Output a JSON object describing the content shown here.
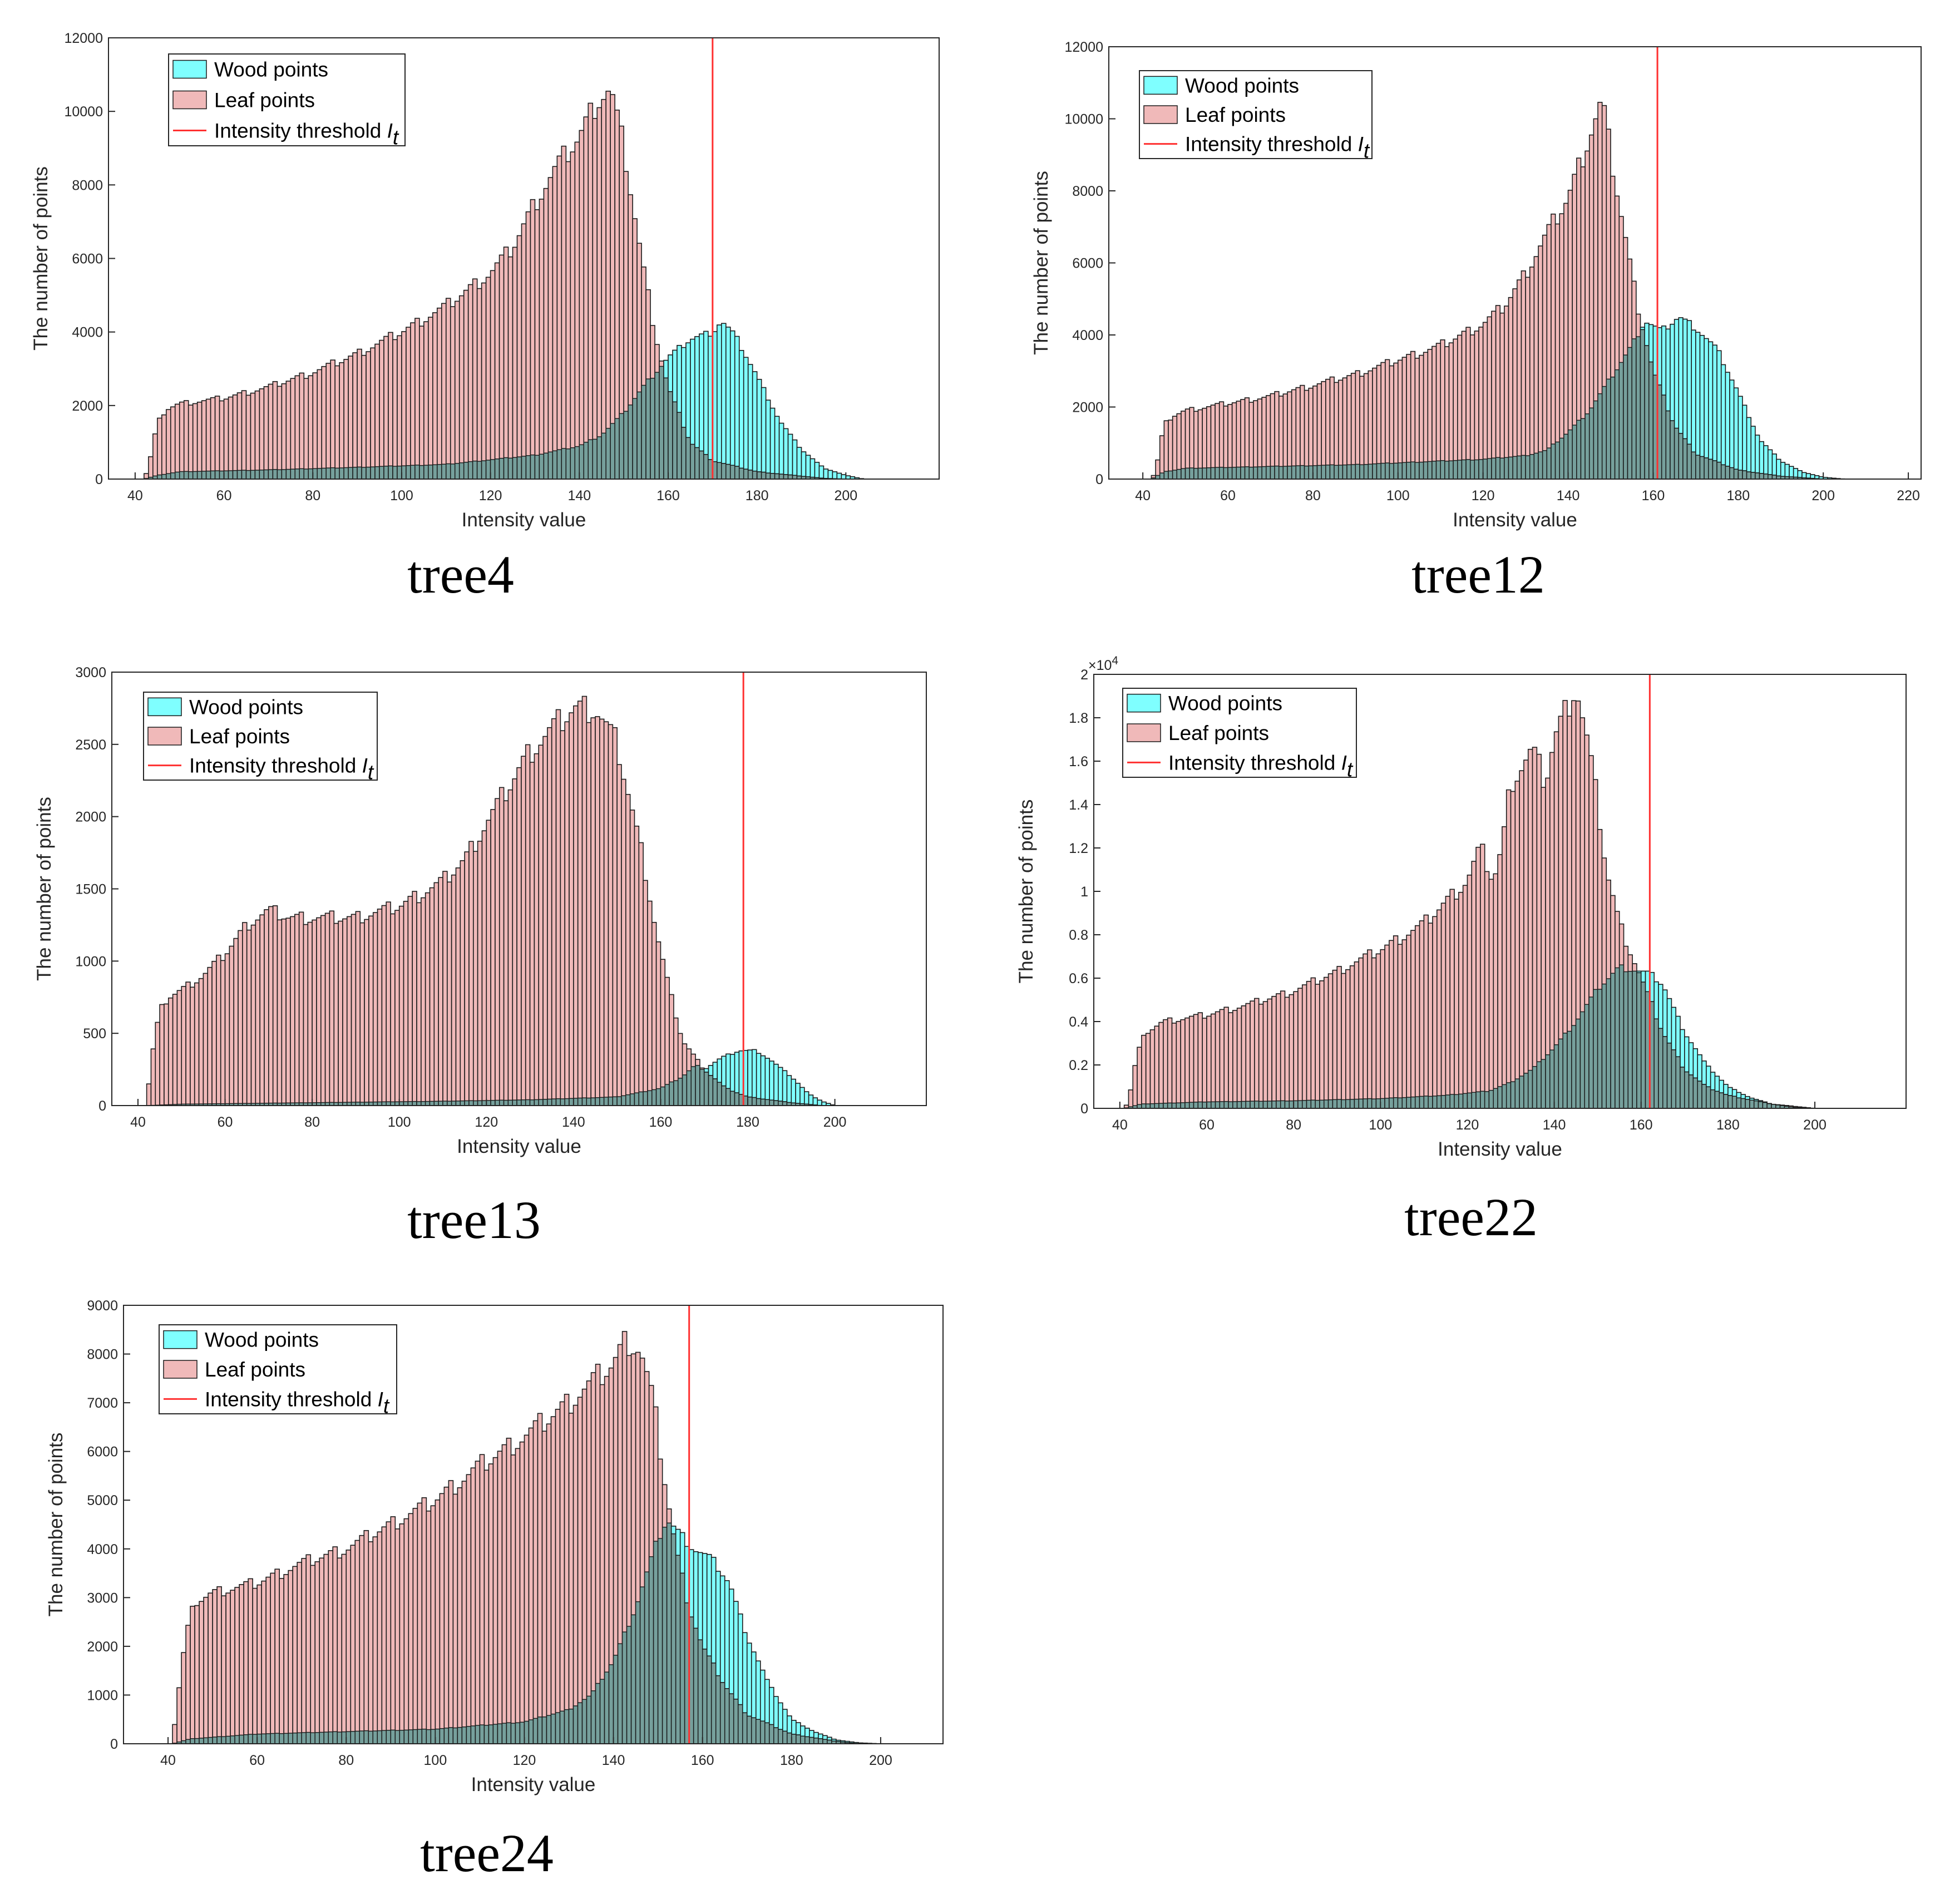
{
  "figure": {
    "caption_note": ""
  },
  "colors": {
    "wood": "#7fffff",
    "leaf": "#f0b9b9",
    "overlap": "#6f9e9a",
    "threshold": "#ff3030",
    "edge": "#1a1a1a",
    "axis": "#262626"
  },
  "legend": {
    "wood": "Wood points",
    "leaf": "Leaf points",
    "threshold": "Intensity threshold",
    "threshold_symbol": "I",
    "threshold_sub": "t"
  },
  "chart_data": [
    {
      "id": "tree4",
      "type": "bar",
      "caption": "tree4",
      "xlabel": "Intensity value",
      "ylabel": "The number of points",
      "xlim": [
        34,
        221
      ],
      "ylim": [
        0,
        12000
      ],
      "xticks": [
        40,
        60,
        80,
        100,
        120,
        140,
        160,
        180,
        200
      ],
      "xtick_labels": [
        "40",
        "60",
        "80",
        "100",
        "120",
        "140",
        "160",
        "180",
        "200"
      ],
      "yticks": [
        0,
        2000,
        4000,
        6000,
        8000,
        10000,
        12000
      ],
      "ytick_labels": [
        "0",
        "2000",
        "4000",
        "6000",
        "8000",
        "10000",
        "12000"
      ],
      "exponent_label": "",
      "threshold": 170,
      "bin_width": 1,
      "leaf_anchors": [
        [
          42,
          0
        ],
        [
          43,
          300
        ],
        [
          45,
          1500
        ],
        [
          47,
          1900
        ],
        [
          50,
          2050
        ],
        [
          60,
          2200
        ],
        [
          70,
          2500
        ],
        [
          80,
          2900
        ],
        [
          90,
          3400
        ],
        [
          100,
          4000
        ],
        [
          110,
          4700
        ],
        [
          120,
          5600
        ],
        [
          125,
          6300
        ],
        [
          130,
          7500
        ],
        [
          135,
          8500
        ],
        [
          140,
          9300
        ],
        [
          144,
          10300
        ],
        [
          147,
          10600
        ],
        [
          150,
          9000
        ],
        [
          152,
          7500
        ],
        [
          154,
          6000
        ],
        [
          157,
          4000
        ],
        [
          160,
          2500
        ],
        [
          165,
          1000
        ],
        [
          170,
          500
        ],
        [
          180,
          200
        ],
        [
          195,
          20
        ],
        [
          200,
          0
        ]
      ],
      "wood_anchors": [
        [
          42,
          0
        ],
        [
          45,
          100
        ],
        [
          50,
          200
        ],
        [
          70,
          250
        ],
        [
          90,
          320
        ],
        [
          110,
          400
        ],
        [
          130,
          650
        ],
        [
          140,
          900
        ],
        [
          145,
          1200
        ],
        [
          150,
          1800
        ],
        [
          155,
          2600
        ],
        [
          160,
          3300
        ],
        [
          165,
          3800
        ],
        [
          170,
          4000
        ],
        [
          172,
          4300
        ],
        [
          175,
          3900
        ],
        [
          180,
          2800
        ],
        [
          185,
          1600
        ],
        [
          190,
          800
        ],
        [
          195,
          300
        ],
        [
          200,
          100
        ],
        [
          204,
          0
        ]
      ]
    },
    {
      "id": "tree12",
      "type": "bar",
      "caption": "tree12",
      "xlabel": "Intensity value",
      "ylabel": "The number of points",
      "xlim": [
        32,
        223
      ],
      "ylim": [
        0,
        12000
      ],
      "xticks": [
        40,
        60,
        80,
        100,
        120,
        140,
        160,
        180,
        200,
        220
      ],
      "xtick_labels": [
        "40",
        "60",
        "80",
        "100",
        "120",
        "140",
        "160",
        "180",
        "200",
        "220"
      ],
      "yticks": [
        0,
        2000,
        4000,
        6000,
        8000,
        10000,
        12000
      ],
      "ytick_labels": [
        "0",
        "2000",
        "4000",
        "6000",
        "8000",
        "10000",
        "12000"
      ],
      "exponent_label": "",
      "threshold": 161,
      "bin_width": 1,
      "leaf_anchors": [
        [
          42,
          0
        ],
        [
          43,
          200
        ],
        [
          45,
          1500
        ],
        [
          47,
          1750
        ],
        [
          50,
          1900
        ],
        [
          60,
          2100
        ],
        [
          70,
          2300
        ],
        [
          80,
          2600
        ],
        [
          90,
          2900
        ],
        [
          100,
          3300
        ],
        [
          110,
          3700
        ],
        [
          120,
          4300
        ],
        [
          125,
          4800
        ],
        [
          130,
          5700
        ],
        [
          135,
          6800
        ],
        [
          140,
          7800
        ],
        [
          145,
          9500
        ],
        [
          148,
          10500
        ],
        [
          150,
          9000
        ],
        [
          153,
          7000
        ],
        [
          156,
          5000
        ],
        [
          160,
          3000
        ],
        [
          165,
          1500
        ],
        [
          170,
          700
        ],
        [
          180,
          250
        ],
        [
          190,
          80
        ],
        [
          200,
          0
        ]
      ],
      "wood_anchors": [
        [
          42,
          0
        ],
        [
          45,
          200
        ],
        [
          50,
          300
        ],
        [
          70,
          350
        ],
        [
          90,
          400
        ],
        [
          110,
          500
        ],
        [
          120,
          550
        ],
        [
          130,
          650
        ],
        [
          135,
          800
        ],
        [
          140,
          1300
        ],
        [
          145,
          1900
        ],
        [
          150,
          2800
        ],
        [
          155,
          3700
        ],
        [
          158,
          4400
        ],
        [
          162,
          4100
        ],
        [
          166,
          4500
        ],
        [
          170,
          4200
        ],
        [
          175,
          3600
        ],
        [
          180,
          2400
        ],
        [
          185,
          1100
        ],
        [
          190,
          500
        ],
        [
          195,
          200
        ],
        [
          200,
          50
        ],
        [
          205,
          0
        ]
      ]
    },
    {
      "id": "tree13",
      "type": "bar",
      "caption": "tree13",
      "xlabel": "Intensity value",
      "ylabel": "The number of points",
      "xlim": [
        34,
        221
      ],
      "ylim": [
        0,
        3000
      ],
      "xticks": [
        40,
        60,
        80,
        100,
        120,
        140,
        160,
        180,
        200
      ],
      "xtick_labels": [
        "40",
        "60",
        "80",
        "100",
        "120",
        "140",
        "160",
        "180",
        "200"
      ],
      "yticks": [
        0,
        500,
        1000,
        1500,
        2000,
        2500,
        3000
      ],
      "ytick_labels": [
        "0",
        "500",
        "1000",
        "1500",
        "2000",
        "2500",
        "3000"
      ],
      "exponent_label": "",
      "threshold": 179,
      "bin_width": 1,
      "leaf_anchors": [
        [
          42,
          0
        ],
        [
          43,
          300
        ],
        [
          45,
          650
        ],
        [
          47,
          750
        ],
        [
          50,
          800
        ],
        [
          55,
          900
        ],
        [
          60,
          1050
        ],
        [
          65,
          1250
        ],
        [
          70,
          1350
        ],
        [
          75,
          1300
        ],
        [
          80,
          1300
        ],
        [
          90,
          1300
        ],
        [
          100,
          1380
        ],
        [
          110,
          1550
        ],
        [
          115,
          1700
        ],
        [
          120,
          1950
        ],
        [
          125,
          2200
        ],
        [
          130,
          2450
        ],
        [
          135,
          2600
        ],
        [
          140,
          2750
        ],
        [
          145,
          2750
        ],
        [
          150,
          2500
        ],
        [
          153,
          2100
        ],
        [
          156,
          1700
        ],
        [
          159,
          1200
        ],
        [
          162,
          800
        ],
        [
          165,
          450
        ],
        [
          170,
          250
        ],
        [
          175,
          120
        ],
        [
          180,
          60
        ],
        [
          190,
          20
        ],
        [
          197,
          0
        ]
      ],
      "wood_anchors": [
        [
          42,
          0
        ],
        [
          50,
          10
        ],
        [
          80,
          20
        ],
        [
          110,
          30
        ],
        [
          130,
          40
        ],
        [
          150,
          60
        ],
        [
          160,
          120
        ],
        [
          165,
          200
        ],
        [
          168,
          280
        ],
        [
          170,
          250
        ],
        [
          174,
          330
        ],
        [
          178,
          380
        ],
        [
          182,
          380
        ],
        [
          185,
          320
        ],
        [
          190,
          200
        ],
        [
          194,
          80
        ],
        [
          197,
          30
        ],
        [
          200,
          0
        ]
      ]
    },
    {
      "id": "tree22",
      "type": "bar",
      "caption": "tree22",
      "xlabel": "Intensity value",
      "ylabel": "The number of points",
      "xlim": [
        34,
        221
      ],
      "ylim": [
        0,
        20000
      ],
      "xticks": [
        40,
        60,
        80,
        100,
        120,
        140,
        160,
        180,
        200
      ],
      "xtick_labels": [
        "40",
        "60",
        "80",
        "100",
        "120",
        "140",
        "160",
        "180",
        "200"
      ],
      "yticks": [
        0,
        2000,
        4000,
        6000,
        8000,
        10000,
        12000,
        14000,
        16000,
        18000,
        20000
      ],
      "ytick_labels": [
        "0",
        "0.2",
        "0.4",
        "0.6",
        "0.8",
        "1",
        "1.2",
        "1.4",
        "1.6",
        "1.8",
        "2"
      ],
      "exponent_label": "×10",
      "exponent_power": "4",
      "threshold": 162,
      "bin_width": 1,
      "leaf_anchors": [
        [
          41,
          0
        ],
        [
          42,
          300
        ],
        [
          44,
          2500
        ],
        [
          46,
          3500
        ],
        [
          50,
          4000
        ],
        [
          60,
          4300
        ],
        [
          70,
          4800
        ],
        [
          80,
          5400
        ],
        [
          90,
          6300
        ],
        [
          100,
          7300
        ],
        [
          110,
          8500
        ],
        [
          115,
          9500
        ],
        [
          120,
          10500
        ],
        [
          123,
          12000
        ],
        [
          126,
          10500
        ],
        [
          128,
          12000
        ],
        [
          130,
          15000
        ],
        [
          135,
          16500
        ],
        [
          138,
          15000
        ],
        [
          140,
          17000
        ],
        [
          143,
          18500
        ],
        [
          145,
          19500
        ],
        [
          148,
          16500
        ],
        [
          150,
          14000
        ],
        [
          152,
          11000
        ],
        [
          155,
          8500
        ],
        [
          158,
          7000
        ],
        [
          160,
          6000
        ],
        [
          165,
          3500
        ],
        [
          170,
          1800
        ],
        [
          175,
          1000
        ],
        [
          180,
          600
        ],
        [
          190,
          200
        ],
        [
          200,
          0
        ]
      ],
      "wood_anchors": [
        [
          41,
          0
        ],
        [
          45,
          200
        ],
        [
          60,
          300
        ],
        [
          80,
          350
        ],
        [
          100,
          450
        ],
        [
          115,
          600
        ],
        [
          125,
          800
        ],
        [
          130,
          1200
        ],
        [
          135,
          1800
        ],
        [
          140,
          2800
        ],
        [
          145,
          4000
        ],
        [
          150,
          5500
        ],
        [
          155,
          6500
        ],
        [
          158,
          6400
        ],
        [
          162,
          6200
        ],
        [
          165,
          5700
        ],
        [
          170,
          3500
        ],
        [
          175,
          2000
        ],
        [
          180,
          1000
        ],
        [
          185,
          500
        ],
        [
          190,
          200
        ],
        [
          195,
          50
        ],
        [
          200,
          0
        ]
      ]
    },
    {
      "id": "tree24",
      "type": "bar",
      "caption": "tree24",
      "xlabel": "Intensity value",
      "ylabel": "The number of points",
      "xlim": [
        30,
        214
      ],
      "ylim": [
        0,
        9000
      ],
      "xticks": [
        40,
        60,
        80,
        100,
        120,
        140,
        160,
        180,
        200
      ],
      "xtick_labels": [
        "40",
        "60",
        "80",
        "100",
        "120",
        "140",
        "160",
        "180",
        "200"
      ],
      "yticks": [
        0,
        1000,
        2000,
        3000,
        4000,
        5000,
        6000,
        7000,
        8000,
        9000
      ],
      "ytick_labels": [
        "0",
        "1000",
        "2000",
        "3000",
        "4000",
        "5000",
        "6000",
        "7000",
        "8000",
        "9000"
      ],
      "exponent_label": "",
      "threshold": 157,
      "bin_width": 1,
      "leaf_anchors": [
        [
          41,
          0
        ],
        [
          42,
          800
        ],
        [
          44,
          2200
        ],
        [
          46,
          2900
        ],
        [
          50,
          3100
        ],
        [
          60,
          3300
        ],
        [
          70,
          3700
        ],
        [
          80,
          4000
        ],
        [
          90,
          4500
        ],
        [
          100,
          5000
        ],
        [
          110,
          5700
        ],
        [
          120,
          6300
        ],
        [
          130,
          7000
        ],
        [
          135,
          7400
        ],
        [
          140,
          7800
        ],
        [
          143,
          8300
        ],
        [
          146,
          8100
        ],
        [
          149,
          7000
        ],
        [
          151,
          5700
        ],
        [
          154,
          4000
        ],
        [
          157,
          2800
        ],
        [
          160,
          2000
        ],
        [
          165,
          1200
        ],
        [
          170,
          600
        ],
        [
          180,
          200
        ],
        [
          190,
          50
        ],
        [
          195,
          0
        ]
      ],
      "wood_anchors": [
        [
          41,
          0
        ],
        [
          45,
          100
        ],
        [
          60,
          200
        ],
        [
          80,
          250
        ],
        [
          100,
          300
        ],
        [
          120,
          450
        ],
        [
          130,
          700
        ],
        [
          135,
          1000
        ],
        [
          140,
          1700
        ],
        [
          145,
          2800
        ],
        [
          150,
          4200
        ],
        [
          152,
          4600
        ],
        [
          155,
          4300
        ],
        [
          158,
          4000
        ],
        [
          162,
          3800
        ],
        [
          166,
          3300
        ],
        [
          170,
          2200
        ],
        [
          175,
          1200
        ],
        [
          180,
          500
        ],
        [
          185,
          250
        ],
        [
          190,
          80
        ],
        [
          195,
          20
        ],
        [
          200,
          0
        ]
      ]
    }
  ]
}
